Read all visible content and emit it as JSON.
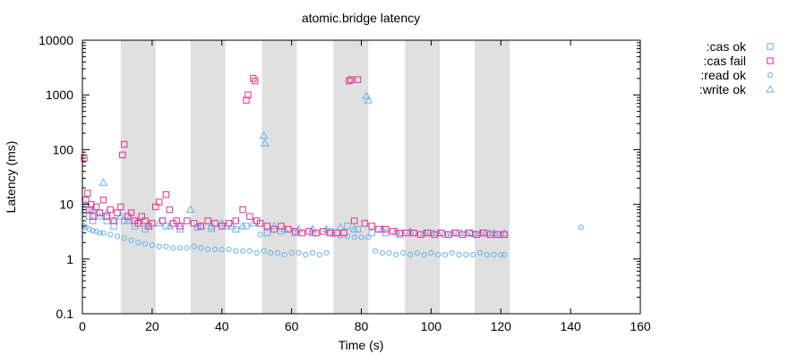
{
  "chart_data": {
    "type": "scatter",
    "title": "atomic.bridge latency",
    "xlabel": "Time (s)",
    "ylabel": "Latency (ms)",
    "xlim": [
      0,
      160
    ],
    "ylim": [
      0.1,
      10000
    ],
    "y_scale": "log",
    "x_ticks": [
      0,
      20,
      40,
      60,
      80,
      100,
      120,
      140,
      160
    ],
    "y_ticks": [
      0.1,
      1,
      10,
      100,
      1000,
      10000
    ],
    "y_tick_labels": [
      "0.1",
      "1",
      "10",
      "100",
      "1000",
      "10000"
    ],
    "grid": false,
    "legend_position": "outside-right",
    "shaded_intervals": [
      [
        11,
        21
      ],
      [
        31,
        41
      ],
      [
        51.5,
        61.5
      ],
      [
        72,
        82
      ],
      [
        92.5,
        102.5
      ],
      [
        112.5,
        122.5
      ]
    ],
    "series": [
      {
        "name": ":cas ok",
        "marker": "square",
        "color": "#66b2ee",
        "x": [
          1,
          2,
          3,
          5,
          7,
          9,
          12,
          15,
          18,
          24,
          28,
          33,
          37,
          41,
          44,
          47,
          53,
          57,
          61,
          66,
          71,
          76,
          79,
          83,
          87,
          91,
          95,
          100,
          104,
          108,
          112,
          116,
          120
        ],
        "y": [
          8,
          6,
          5,
          7,
          5,
          4,
          5,
          4,
          3.5,
          4,
          3.5,
          3.8,
          3.6,
          4,
          3.5,
          4,
          3,
          3.2,
          3,
          3,
          3.2,
          4,
          3.5,
          3,
          3,
          2.8,
          3,
          3,
          2.8,
          3,
          2.9,
          3,
          2.8
        ]
      },
      {
        "name": ":cas fail",
        "marker": "square",
        "color": "#e8308c",
        "x": [
          0.5,
          1,
          1.5,
          2,
          2.5,
          3,
          4,
          5,
          6,
          7,
          8,
          9,
          10,
          11,
          11.5,
          12,
          13,
          14,
          15,
          16,
          17,
          18,
          19,
          20,
          21,
          22,
          23,
          24,
          25,
          26,
          27,
          28,
          30,
          32,
          34,
          36,
          38,
          40,
          42,
          44,
          46,
          47,
          47.5,
          48,
          49,
          49.5,
          50,
          51,
          53,
          55,
          57,
          59,
          61,
          63,
          65,
          67,
          69,
          71,
          73,
          75,
          76.5,
          77,
          78,
          79,
          81,
          83,
          85,
          87,
          89,
          91,
          93,
          95,
          97,
          99,
          101,
          103,
          105,
          107,
          109,
          111,
          113,
          115,
          117,
          119,
          121
        ],
        "y": [
          70,
          12,
          16,
          8,
          10,
          6,
          9,
          7,
          12,
          6,
          8,
          5,
          7,
          9,
          80,
          125,
          6,
          7,
          5,
          4.5,
          6,
          5,
          4,
          4.5,
          9,
          11,
          5,
          15,
          8,
          4.5,
          5,
          4,
          5,
          4.5,
          4,
          5,
          4.5,
          4,
          4.5,
          5,
          8,
          800,
          1000,
          6,
          2000,
          1800,
          5,
          4.5,
          4,
          3.5,
          4,
          3.5,
          3.2,
          3,
          3.2,
          3,
          3.2,
          3,
          3,
          3,
          1800,
          1900,
          5,
          1900,
          4.5,
          4,
          3.5,
          3.5,
          3.2,
          3,
          3,
          3,
          2.8,
          3,
          2.8,
          3,
          2.8,
          3,
          2.8,
          3,
          2.8,
          3,
          2.8,
          2.8,
          2.8
        ]
      },
      {
        "name": ":read ok",
        "marker": "circle",
        "color": "#66b2ee",
        "x": [
          0.5,
          1,
          2,
          3,
          4,
          5,
          6,
          8,
          10,
          12,
          14,
          16,
          18,
          20,
          22,
          24,
          26,
          28,
          30,
          32,
          34,
          36,
          38,
          40,
          42,
          44,
          46,
          48,
          50,
          51,
          52,
          54,
          56,
          58,
          60,
          62,
          64,
          66,
          68,
          70,
          72,
          74,
          76,
          78,
          80,
          82,
          84,
          86,
          88,
          90,
          92,
          94,
          96,
          98,
          100,
          102,
          104,
          106,
          108,
          110,
          112,
          114,
          116,
          118,
          120,
          121,
          143
        ],
        "y": [
          4,
          3.8,
          3.5,
          3.3,
          3.2,
          3,
          3,
          2.8,
          2.6,
          2.4,
          2.2,
          2,
          1.9,
          1.8,
          1.7,
          1.7,
          1.6,
          1.6,
          1.6,
          1.7,
          1.6,
          1.5,
          1.5,
          1.5,
          1.5,
          1.4,
          1.4,
          1.4,
          1.3,
          2.8,
          1.4,
          1.3,
          1.3,
          1.2,
          1.3,
          1.3,
          1.2,
          1.3,
          1.2,
          1.3,
          2.8,
          2.6,
          2.6,
          2.5,
          2.5,
          2.5,
          1.4,
          1.3,
          1.3,
          1.2,
          1.3,
          1.2,
          1.3,
          1.2,
          1.3,
          1.2,
          1.2,
          1.3,
          1.2,
          1.2,
          1.2,
          1.3,
          1.2,
          1.2,
          1.2,
          1.2,
          3.8
        ]
      },
      {
        "name": ":write ok",
        "marker": "triangle",
        "color": "#66b2ee",
        "x": [
          1,
          3,
          5,
          6,
          7,
          9,
          11,
          13,
          16,
          19,
          22,
          25,
          28,
          31,
          34,
          37,
          40,
          43,
          46,
          49,
          52,
          52.3,
          55,
          58,
          62,
          66,
          70,
          74,
          78,
          81.5,
          82,
          86,
          90,
          94,
          98,
          102,
          106,
          110,
          114,
          118,
          121
        ],
        "y": [
          10,
          8,
          6,
          25,
          7,
          5,
          6,
          5,
          5,
          4,
          4.5,
          4,
          4,
          8,
          4,
          4,
          4.5,
          4,
          4,
          4.5,
          180,
          130,
          4,
          3.5,
          3.5,
          3.5,
          3.5,
          3.8,
          3.5,
          950,
          800,
          3.5,
          3.2,
          3.2,
          3,
          3,
          3,
          3,
          3,
          3,
          3
        ]
      }
    ]
  }
}
